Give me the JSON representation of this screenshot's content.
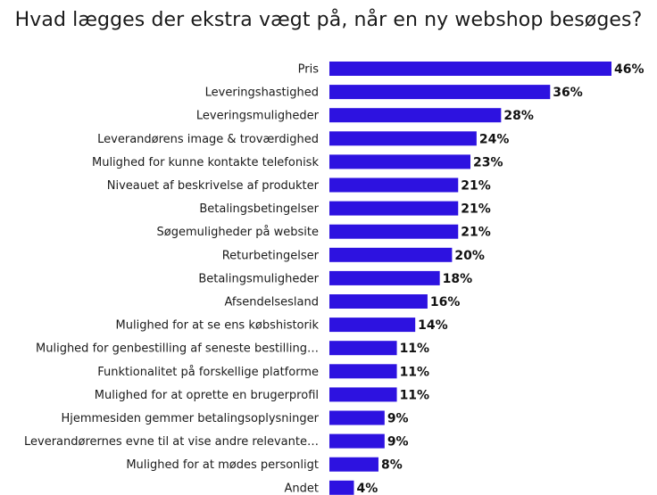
{
  "chart_data": {
    "type": "bar",
    "orientation": "horizontal",
    "title": "Hvad lægges der ekstra vægt på, når en ny webshop besøges?",
    "categories": [
      "Pris",
      "Leveringshastighed",
      "Leveringsmuligheder",
      "Leverandørens image & troværdighed",
      "Mulighed for kunne kontakte telefonisk",
      "Niveauet af beskrivelse af produkter",
      "Betalingsbetingelser",
      "Søgemuligheder på website",
      "Returbetingelser",
      "Betalingsmuligheder",
      "Afsendelsesland",
      "Mulighed for at se ens købshistorik",
      "Mulighed for genbestilling af seneste bestilling…",
      "Funktionalitet på forskellige platforme",
      "Mulighed for at oprette en brugerprofil",
      "Hjemmesiden gemmer betalingsoplysninger",
      "Leverandørernes evne til at vise andre relevante…",
      "Mulighed for at mødes personligt",
      "Andet"
    ],
    "values": [
      46,
      36,
      28,
      24,
      23,
      21,
      21,
      21,
      20,
      18,
      16,
      14,
      11,
      11,
      11,
      9,
      9,
      8,
      4
    ],
    "value_labels": [
      "46%",
      "36%",
      "28%",
      "24%",
      "23%",
      "21%",
      "21%",
      "21%",
      "20%",
      "18%",
      "16%",
      "14%",
      "11%",
      "11%",
      "11%",
      "9%",
      "9%",
      "8%",
      "4%"
    ],
    "xlim": [
      0,
      46
    ],
    "grid": false,
    "legend": "none",
    "bar_color": "#2d12e0"
  }
}
